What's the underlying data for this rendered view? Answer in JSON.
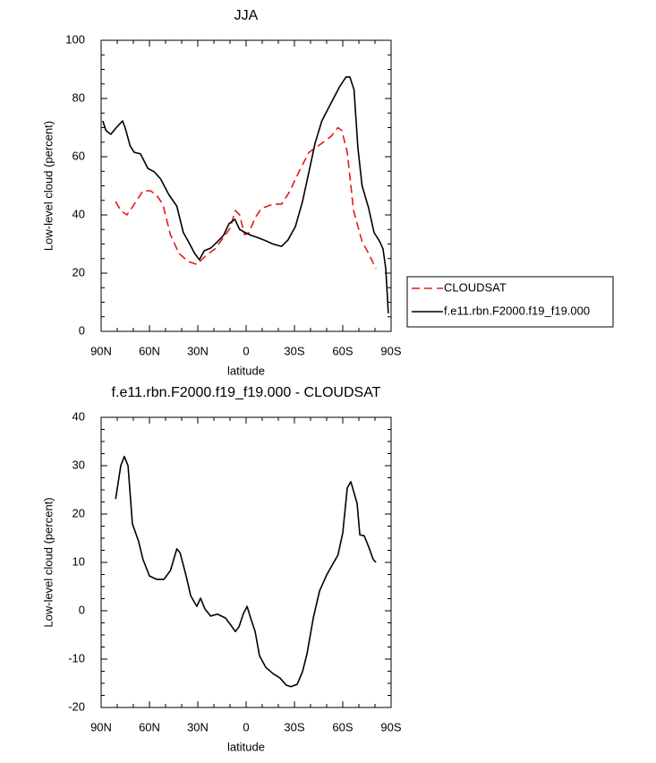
{
  "chart_data": [
    {
      "type": "line",
      "title": "JJA",
      "xlabel": "latitude",
      "ylabel": "Low-level cloud (percent)",
      "xlim": [
        90,
        -90
      ],
      "xticks": [
        {
          "value": 90,
          "label": "90N"
        },
        {
          "value": 60,
          "label": "60N"
        },
        {
          "value": 30,
          "label": "30N"
        },
        0,
        {
          "value": -30,
          "label": "30S"
        },
        {
          "value": -60,
          "label": "60S"
        },
        {
          "value": -90,
          "label": "90S"
        }
      ],
      "ylim": [
        0,
        100
      ],
      "yticks": [
        0,
        20,
        40,
        60,
        80,
        100
      ],
      "legend": "right",
      "series": [
        {
          "name": "CLOUDSAT",
          "color": "#e41a1c",
          "dash": "dashed",
          "x": [
            81,
            77.8,
            74,
            69.4,
            64,
            59.4,
            55.6,
            51.7,
            47,
            41.7,
            36,
            30.6,
            25,
            19.4,
            14,
            10,
            6.7,
            4,
            1,
            -1.7,
            -5.6,
            -9.4,
            -16.7,
            -22,
            -26.7,
            -33.3,
            -39,
            -47,
            -52.8,
            -57,
            -59.4,
            -62.8,
            -66.7,
            -72,
            -76,
            -80.6
          ],
          "values": [
            44.6,
            41.5,
            40,
            43.7,
            48.3,
            48.3,
            46.8,
            43.7,
            33.2,
            26.8,
            24,
            23,
            26,
            28.3,
            32.3,
            35.4,
            41.5,
            40,
            33.2,
            33.8,
            39,
            42.2,
            43.7,
            43.7,
            47.7,
            55.4,
            61.5,
            64.6,
            67,
            70,
            69,
            61.5,
            41.5,
            30.8,
            26.8,
            21.5
          ]
        },
        {
          "name": "f.e11.rbn.F2000.f19_f19.000",
          "color": "#000000",
          "dash": "solid",
          "x": [
            89,
            87,
            84,
            80.6,
            76.7,
            75,
            72,
            69.4,
            65.6,
            61,
            57,
            53,
            48,
            43,
            39,
            35,
            32,
            29,
            26,
            22,
            17.8,
            14,
            10.6,
            7,
            4,
            0,
            -3,
            -6.7,
            -11,
            -16.7,
            -22,
            -26,
            -30.6,
            -35,
            -39,
            -42.8,
            -47,
            -52.8,
            -58,
            -62,
            -64.4,
            -67,
            -69.4,
            -72,
            -76,
            -79.4,
            -83,
            -85,
            -86.7,
            -88.3
          ],
          "values": [
            72.3,
            69,
            67.7,
            70,
            72.3,
            69.8,
            63.7,
            61.5,
            61,
            56,
            54.8,
            52.3,
            47,
            43,
            34,
            30,
            26.8,
            24.6,
            27.7,
            28.6,
            30.8,
            33,
            37,
            38.5,
            35,
            33.8,
            33,
            32.3,
            31.4,
            30,
            29.2,
            31.4,
            36,
            44.6,
            54.8,
            64.6,
            72.3,
            78.5,
            84,
            87.4,
            87.4,
            83,
            63,
            50,
            42.5,
            34,
            30.8,
            28.3,
            21.5,
            6.2
          ]
        }
      ]
    },
    {
      "type": "line",
      "title": "f.e11.rbn.F2000.f19_f19.000 - CLOUDSAT",
      "xlabel": "latitude",
      "ylabel": "Low-level cloud (percent)",
      "xlim": [
        90,
        -90
      ],
      "xticks": [
        {
          "value": 90,
          "label": "90N"
        },
        {
          "value": 60,
          "label": "60N"
        },
        {
          "value": 30,
          "label": "30N"
        },
        0,
        {
          "value": -30,
          "label": "30S"
        },
        {
          "value": -60,
          "label": "60S"
        },
        {
          "value": -90,
          "label": "90S"
        }
      ],
      "ylim": [
        -20,
        40
      ],
      "yticks": [
        -20,
        -10,
        0,
        10,
        20,
        30,
        40
      ],
      "series": [
        {
          "color": "#000000",
          "dash": "solid",
          "x": [
            81,
            77.8,
            75.6,
            73.3,
            70.6,
            66.7,
            64,
            60,
            55.6,
            51,
            47,
            43,
            41,
            37,
            34.4,
            30.6,
            28.3,
            25.6,
            22,
            17.8,
            12.8,
            9.4,
            6.7,
            4.4,
            1.7,
            -0.6,
            -2.8,
            -5.6,
            -8.3,
            -12.2,
            -16.7,
            -21,
            -25,
            -27.8,
            -31.7,
            -35,
            -37.8,
            -41.7,
            -45.6,
            -50,
            -54.4,
            -57,
            -60,
            -62.8,
            -65,
            -68.9,
            -70.6,
            -73.3,
            -76,
            -78.9,
            -80.6
          ],
          "values": [
            23.1,
            30,
            31.9,
            30,
            18,
            14.3,
            10.6,
            7.2,
            6.5,
            6.5,
            8.3,
            12.8,
            12,
            6.9,
            3.1,
            0.9,
            2.6,
            0.4,
            -1.1,
            -0.7,
            -1.5,
            -3,
            -4.3,
            -3.3,
            -0.6,
            0.9,
            -1.5,
            -4.3,
            -9.3,
            -11.7,
            -13,
            -13.9,
            -15.4,
            -15.7,
            -15.2,
            -12.6,
            -8.9,
            -1.5,
            4.1,
            7.4,
            10,
            11.5,
            16.1,
            25.4,
            26.7,
            22.2,
            15.7,
            15.5,
            13.3,
            10.6,
            10
          ]
        }
      ]
    }
  ]
}
